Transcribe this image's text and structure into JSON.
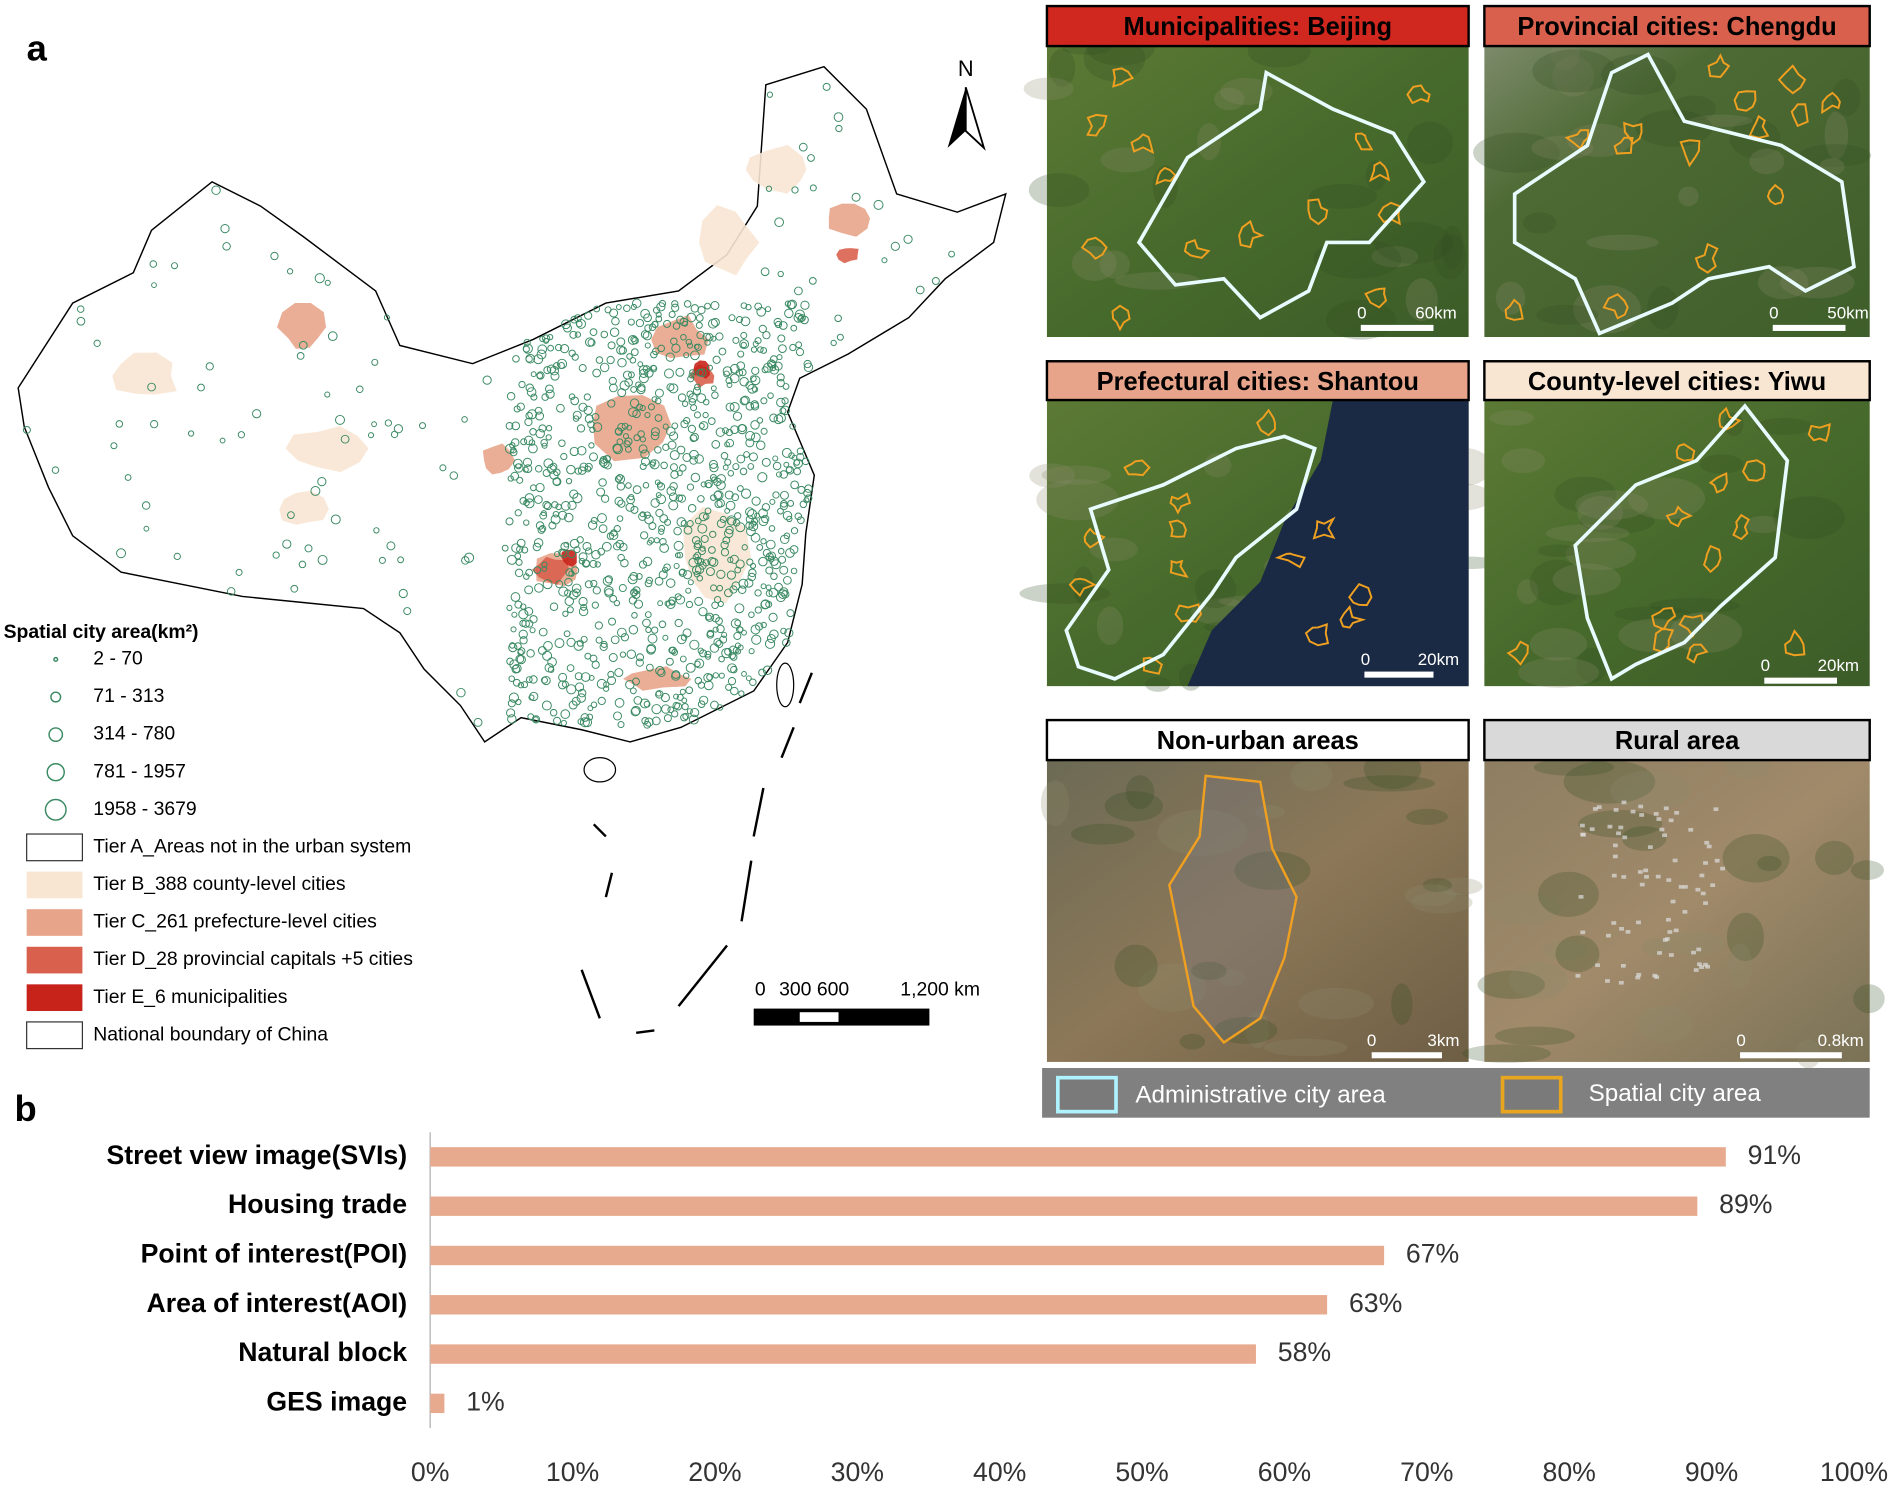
{
  "panel_a": {
    "label": "a",
    "north": "N",
    "legend_title": "Spatial city area(km²)",
    "size_classes": [
      "2 - 70",
      "71 - 313",
      "314 - 780",
      "781 - 1957",
      "1958 - 3679"
    ],
    "tiers": [
      {
        "label": "Tier A_Areas not in the urban system",
        "color": "#ffffff"
      },
      {
        "label": "Tier B_388 county-level cities",
        "color": "#f8e6d3"
      },
      {
        "label": "Tier C_261 prefecture-level cities",
        "color": "#e8a48a"
      },
      {
        "label": "Tier D_28 provincial capitals +5 cities",
        "color": "#d9604c"
      },
      {
        "label": "Tier E_6 municipalities",
        "color": "#c8231b"
      },
      {
        "label": "National boundary of China",
        "color": "#ffffff"
      }
    ],
    "scale_bar": [
      "0",
      "300 600",
      "1,200 km"
    ]
  },
  "image_panels": [
    {
      "title": "Municipalities: Beijing",
      "color": "#d0281f",
      "scale": [
        "0",
        "60km"
      ]
    },
    {
      "title": "Provincial cities: Chengdu",
      "color": "#d9604c",
      "scale": [
        "0",
        "50km"
      ]
    },
    {
      "title": "Prefectural cities: Shantou",
      "color": "#e8a48a",
      "scale": [
        "0",
        "20km"
      ]
    },
    {
      "title": "County-level cities: Yiwu",
      "color": "#f8e6d3",
      "scale": [
        "0",
        "20km"
      ]
    },
    {
      "title": "Non-urban areas",
      "color": "#ffffff",
      "scale": [
        "0",
        "3km"
      ]
    },
    {
      "title": "Rural area",
      "color": "#d9d9d9",
      "scale": [
        "0",
        "0.8km"
      ]
    }
  ],
  "image_legend": [
    "Administrative city area",
    "Spatial city area"
  ],
  "chart_data": {
    "type": "bar",
    "orientation": "horizontal",
    "label": "b",
    "categories": [
      "Street view image(SVIs)",
      "Housing trade",
      "Point of interest(POI)",
      "Area of interest(AOI)",
      "Natural block",
      "GES image"
    ],
    "values": [
      91,
      89,
      67,
      63,
      58,
      1
    ],
    "value_labels": [
      "91%",
      "89%",
      "67%",
      "63%",
      "58%",
      "1%"
    ],
    "color": "#e8aa8e",
    "xlim": [
      0,
      100
    ],
    "xticks": [
      {
        "value": 0,
        "label": "0%"
      },
      {
        "value": 10,
        "label": "10%"
      },
      {
        "value": 20,
        "label": "20%"
      },
      {
        "value": 30,
        "label": "30%"
      },
      {
        "value": 40,
        "label": "40%"
      },
      {
        "value": 50,
        "label": "50%"
      },
      {
        "value": 60,
        "label": "60%"
      },
      {
        "value": 70,
        "label": "70%"
      },
      {
        "value": 80,
        "label": "80%"
      },
      {
        "value": 90,
        "label": "90%"
      },
      {
        "value": 100,
        "label": "100%"
      }
    ]
  }
}
